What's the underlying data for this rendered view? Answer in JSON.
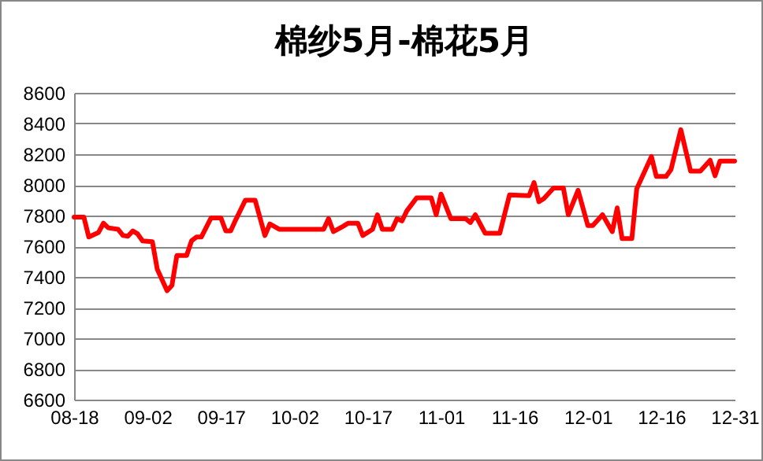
{
  "chart_data": {
    "type": "line",
    "title": "棉纱5月-棉花5月",
    "x": [
      "--08-18",
      "--08-20",
      "--08-21",
      "--08-23",
      "--08-24",
      "--08-25",
      "--08-27",
      "--08-28",
      "--08-29",
      "--08-30",
      "--08-31",
      "--09-01",
      "--09-03",
      "--09-04",
      "--09-06",
      "--09-07",
      "--09-08",
      "--09-10",
      "--09-11",
      "--09-12",
      "--09-13",
      "--09-15",
      "--09-17",
      "--09-18",
      "--09-19",
      "--09-20",
      "--09-22",
      "--09-24",
      "--09-26",
      "--09-27",
      "--09-29",
      "--10-08",
      "--10-09",
      "--10-10",
      "--10-12",
      "--10-13",
      "--10-15",
      "--10-16",
      "--10-18",
      "--10-19",
      "--10-20",
      "--10-22",
      "--10-23",
      "--10-24",
      "--10-25",
      "--10-27",
      "--10-30",
      "--10-31",
      "--11-01",
      "--11-03",
      "--11-06",
      "--11-07",
      "--11-08",
      "--11-10",
      "--11-13",
      "--11-15",
      "--11-19",
      "--11-20",
      "--11-21",
      "--11-22",
      "--11-24",
      "--11-26",
      "--11-27",
      "--11-29",
      "--12-01",
      "--12-02",
      "--12-04",
      "--12-06",
      "--12-07",
      "--12-08",
      "--12-10",
      "--12-11",
      "--12-12",
      "--12-14",
      "--12-15",
      "--12-17",
      "--12-18",
      "--12-20",
      "--12-22",
      "--12-24",
      "--12-26",
      "--12-27",
      "--12-28",
      "--12-31"
    ],
    "series": [
      {
        "color": "#ff0000",
        "values": [
          7790,
          7790,
          7660,
          7690,
          7750,
          7720,
          7710,
          7670,
          7665,
          7700,
          7680,
          7635,
          7630,
          7450,
          7310,
          7345,
          7540,
          7540,
          7635,
          7660,
          7660,
          7785,
          7785,
          7700,
          7700,
          7770,
          7900,
          7900,
          7670,
          7745,
          7710,
          7710,
          7780,
          7695,
          7730,
          7750,
          7750,
          7670,
          7710,
          7805,
          7710,
          7710,
          7780,
          7765,
          7830,
          7915,
          7915,
          7805,
          7940,
          7780,
          7780,
          7755,
          7805,
          7685,
          7685,
          7935,
          7930,
          8015,
          7890,
          7910,
          7980,
          7980,
          7805,
          7965,
          7735,
          7735,
          7805,
          7695,
          7850,
          7650,
          7650,
          7975,
          8045,
          8185,
          8055,
          8055,
          8100,
          8360,
          8090,
          8090,
          8160,
          8060,
          8155,
          8155
        ]
      }
    ],
    "xlim": [
      "--08-18",
      "--12-31"
    ],
    "xticks": [
      {
        "value": "--08-18",
        "label": "08-18"
      },
      {
        "value": "--09-02",
        "label": "09-02"
      },
      {
        "value": "--09-17",
        "label": "09-17"
      },
      {
        "value": "--10-02",
        "label": "10-02"
      },
      {
        "value": "--10-17",
        "label": "10-17"
      },
      {
        "value": "--11-01",
        "label": "11-01"
      },
      {
        "value": "--11-16",
        "label": "11-16"
      },
      {
        "value": "--12-01",
        "label": "12-01"
      },
      {
        "value": "--12-16",
        "label": "12-16"
      },
      {
        "value": "--12-31",
        "label": "12-31"
      }
    ],
    "ylim": [
      6600,
      8600
    ],
    "yticks": [
      6600,
      6800,
      7000,
      7200,
      7400,
      7600,
      7800,
      8000,
      8200,
      8400,
      8600
    ],
    "grid": "y"
  }
}
